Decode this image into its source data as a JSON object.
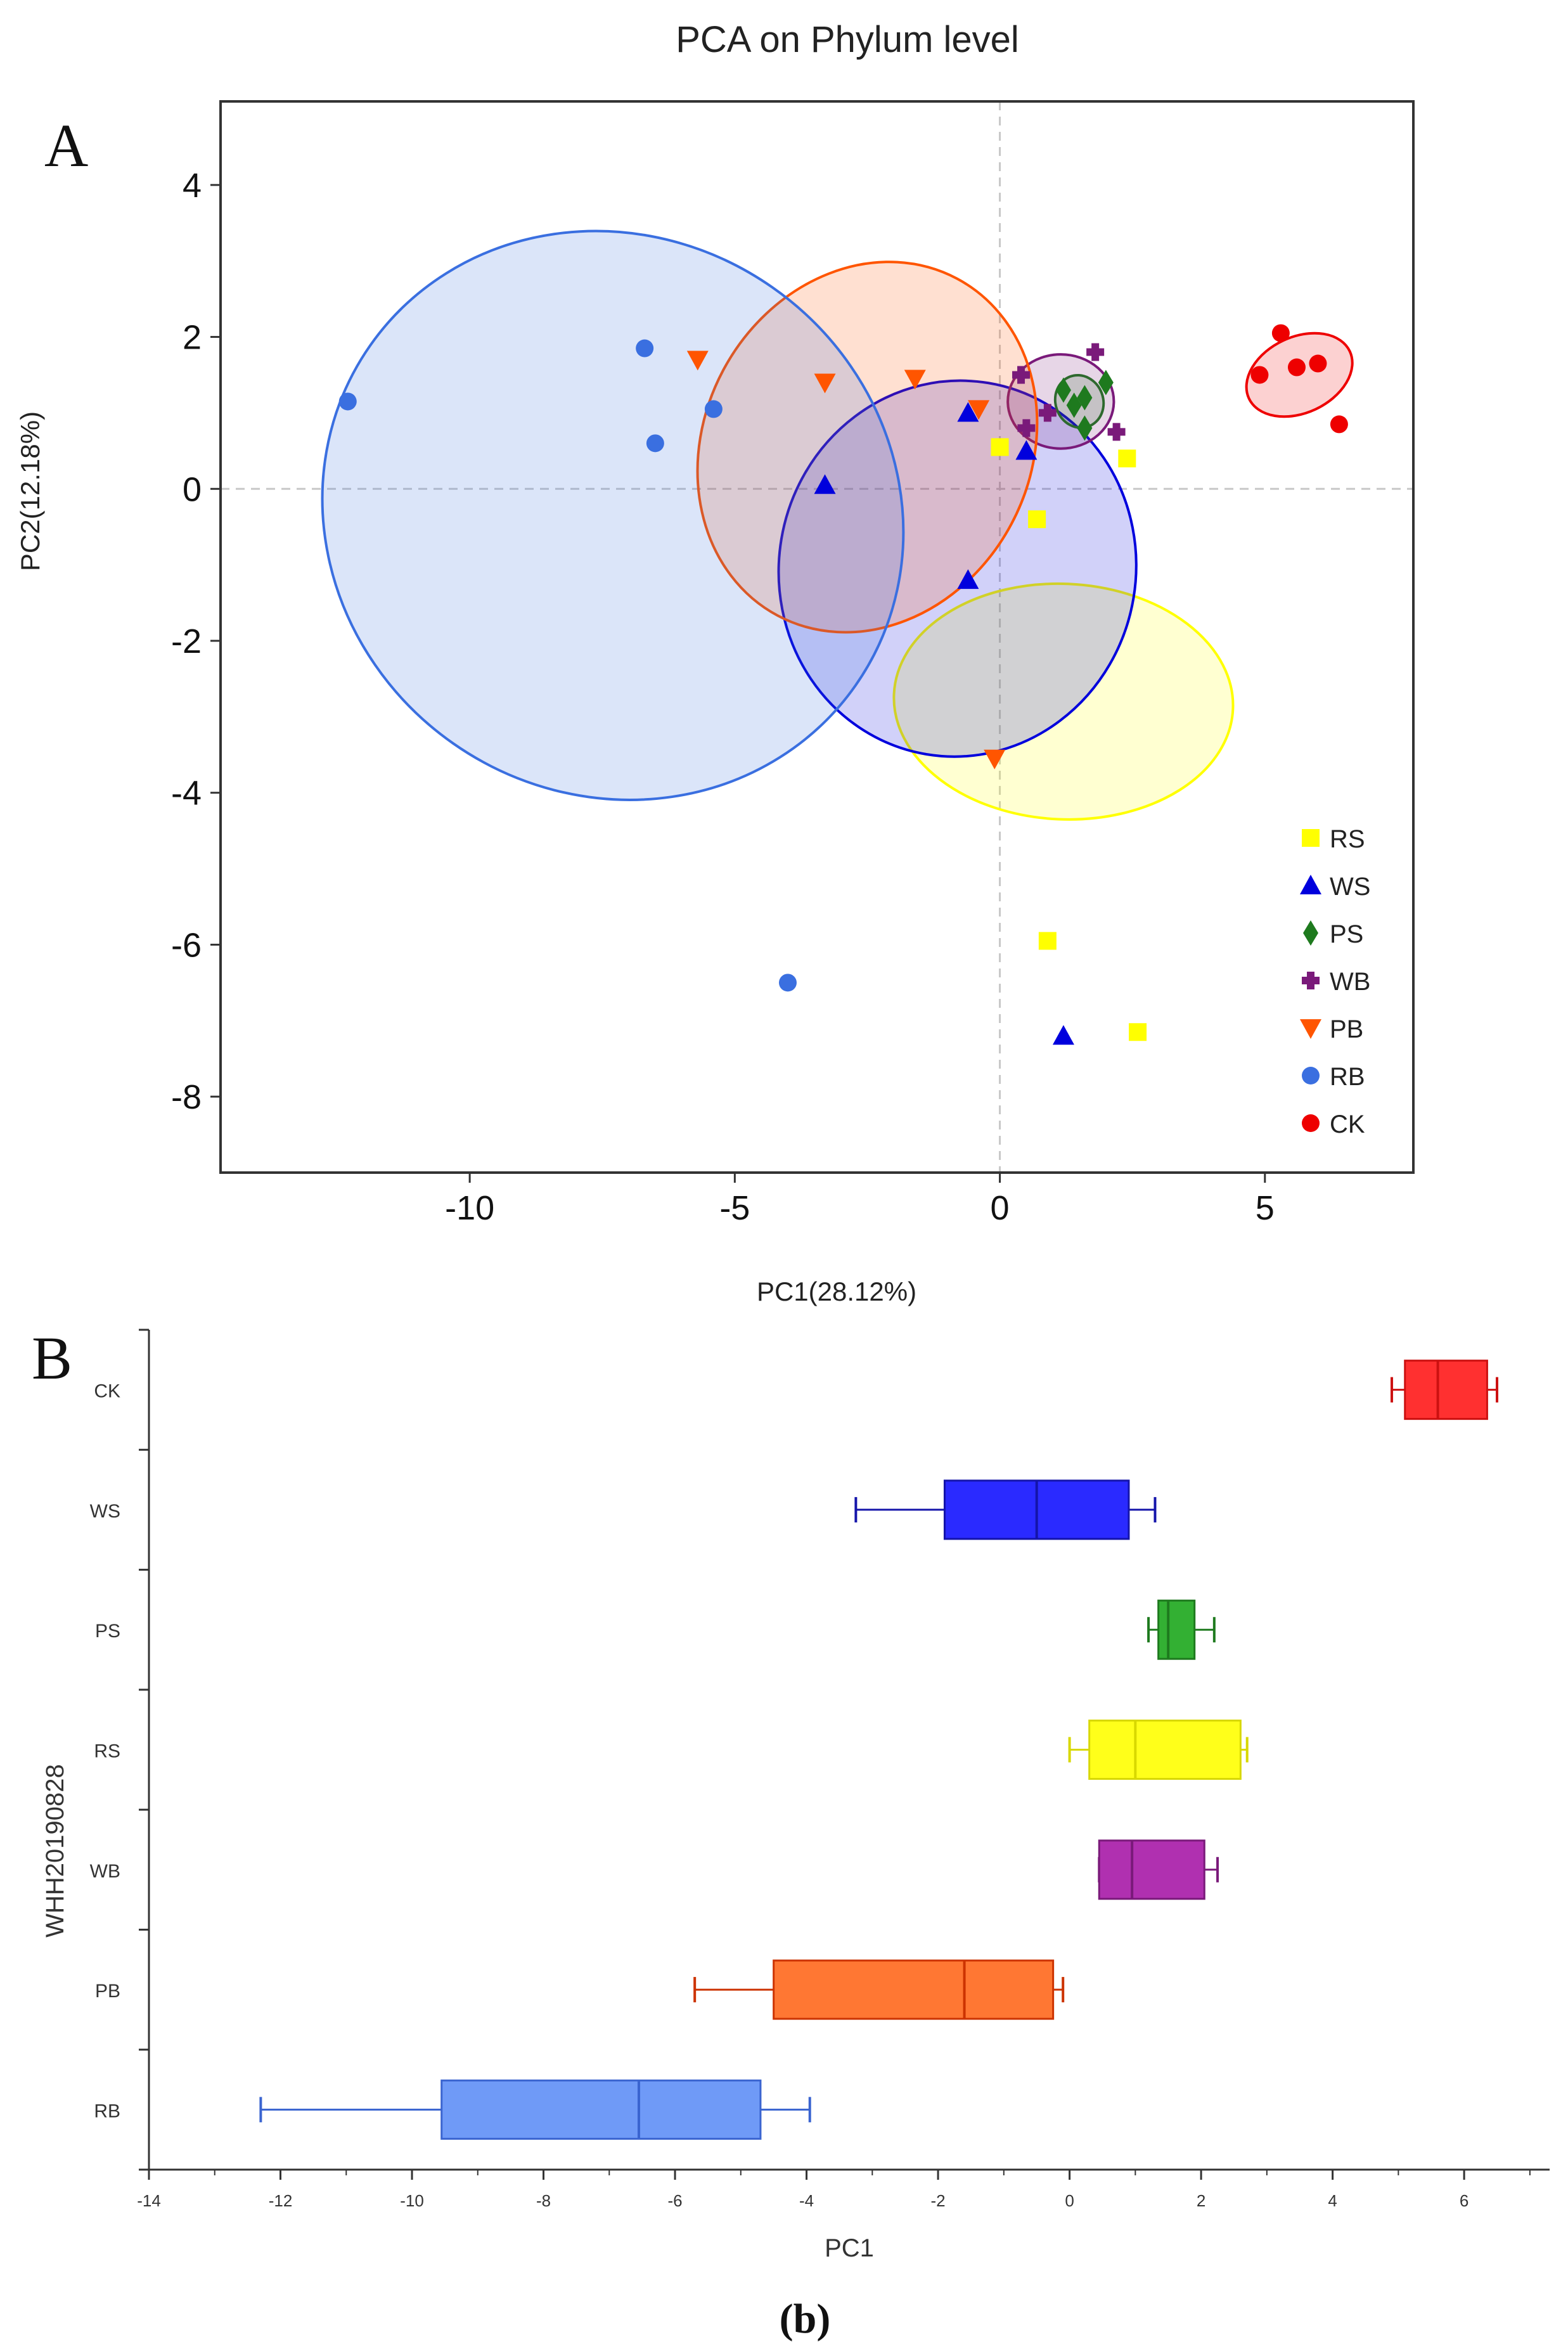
{
  "figure_caption": "(b)",
  "colors": {
    "RS": "#ffff00",
    "WS": "#0000dd",
    "PS": "#1e7a1e",
    "WB": "#7a1a7a",
    "PB": "#ff5500",
    "RB": "#3a6fe0",
    "CK": "#ee0000"
  },
  "chart_data": [
    {
      "type": "scatter",
      "panel_label": "A",
      "title": "PCA on Phylum level",
      "xlabel": "PC1(28.12%)",
      "ylabel": "PC2(12.18%)",
      "xlim": [
        -14.7,
        7.8
      ],
      "ylim": [
        -9,
        5.1
      ],
      "xticks": [
        "-10",
        "-5",
        "0",
        "5"
      ],
      "yticks": [
        "4",
        "2",
        "0",
        "-2",
        "-4",
        "-6",
        "-8"
      ],
      "legend_position": "bottom-right",
      "legend": [
        "RS",
        "WS",
        "PS",
        "WB",
        "PB",
        "RB",
        "CK"
      ],
      "series": [
        {
          "name": "RS",
          "marker": "square",
          "points": [
            [
              0,
              0.55
            ],
            [
              0.7,
              -0.4
            ],
            [
              2.4,
              0.4
            ],
            [
              0.9,
              -5.95
            ],
            [
              2.6,
              -7.15
            ]
          ],
          "ellipse": {
            "cx": 1.2,
            "cy": -2.8,
            "rx": 3.2,
            "ry": 1.55,
            "angle": -2.5
          }
        },
        {
          "name": "WS",
          "marker": "triangle",
          "points": [
            [
              -3.3,
              0.05
            ],
            [
              -0.6,
              1.0
            ],
            [
              0.5,
              0.5
            ],
            [
              -0.6,
              -1.2
            ],
            [
              1.2,
              -7.2
            ]
          ],
          "ellipse": {
            "cx": -0.8,
            "cy": -1.05,
            "rx": 3.55,
            "ry": 2.35,
            "angle": 80.5
          }
        },
        {
          "name": "PS",
          "marker": "diamond",
          "points": [
            [
              1.2,
              1.3
            ],
            [
              1.4,
              1.1
            ],
            [
              1.6,
              1.2
            ],
            [
              1.6,
              0.8
            ],
            [
              2.0,
              1.4
            ]
          ],
          "ellipse": {
            "cx": 1.5,
            "cy": 1.15,
            "rx": 0.45,
            "ry": 0.35,
            "angle": 20
          }
        },
        {
          "name": "WB",
          "marker": "plus",
          "points": [
            [
              0.4,
              1.5
            ],
            [
              1.8,
              1.8
            ],
            [
              0.9,
              1.0
            ],
            [
              0.5,
              0.8
            ],
            [
              2.2,
              0.75
            ]
          ],
          "ellipse": {
            "cx": 1.15,
            "cy": 1.15,
            "rx": 1.0,
            "ry": 0.62,
            "angle": 0
          }
        },
        {
          "name": "PB",
          "marker": "triangle-down",
          "points": [
            [
              -5.7,
              1.7
            ],
            [
              -3.3,
              1.4
            ],
            [
              -1.6,
              1.45
            ],
            [
              -0.4,
              1.05
            ],
            [
              -0.1,
              -3.55
            ]
          ],
          "ellipse": {
            "cx": -2.5,
            "cy": 0.55,
            "rx": 3.6,
            "ry": 2.15,
            "angle": 62
          }
        },
        {
          "name": "RB",
          "marker": "circle",
          "points": [
            [
              -12.3,
              1.15
            ],
            [
              -6.7,
              1.85
            ],
            [
              -6.5,
              0.6
            ],
            [
              -5.4,
              1.05
            ],
            [
              -4.0,
              -6.5
            ]
          ],
          "ellipse": {
            "cx": -7.3,
            "cy": -0.35,
            "rx": 5.25,
            "ry": 3.9,
            "angle": 55
          }
        },
        {
          "name": "CK",
          "marker": "circle",
          "points": [
            [
              4.9,
              1.5
            ],
            [
              5.3,
              2.05
            ],
            [
              5.6,
              1.6
            ],
            [
              6.0,
              1.65
            ],
            [
              6.4,
              0.85
            ]
          ],
          "ellipse": {
            "cx": 5.65,
            "cy": 1.5,
            "rx": 1.05,
            "ry": 0.5,
            "angle": 25
          }
        }
      ]
    },
    {
      "type": "box",
      "panel_label": "B",
      "xlabel": "PC1",
      "ylabel": "WHH20190828",
      "xlim": [
        -14,
        7.3
      ],
      "xticks": [
        "-14",
        "-12",
        "-10",
        "-8",
        "-6",
        "-4",
        "-2",
        "0",
        "2",
        "4",
        "6"
      ],
      "categories": [
        "CK",
        "WS",
        "PS",
        "RS",
        "WB",
        "PB",
        "RB"
      ],
      "boxes": [
        {
          "name": "CK",
          "min": 4.9,
          "q1": 5.1,
          "median": 5.6,
          "q3": 6.35,
          "max": 6.5
        },
        {
          "name": "WS",
          "min": -3.25,
          "q1": -1.9,
          "median": -0.5,
          "q3": 0.9,
          "max": 1.3
        },
        {
          "name": "PS",
          "min": 1.2,
          "q1": 1.35,
          "median": 1.5,
          "q3": 1.9,
          "max": 2.2
        },
        {
          "name": "RS",
          "min": 0,
          "q1": 0.3,
          "median": 1.0,
          "q3": 2.6,
          "max": 2.7
        },
        {
          "name": "WB",
          "min": 0.45,
          "q1": 0.45,
          "median": 0.95,
          "q3": 2.05,
          "max": 2.25
        },
        {
          "name": "PB",
          "min": -5.7,
          "q1": -4.5,
          "median": -1.6,
          "q3": -0.25,
          "max": -0.1
        },
        {
          "name": "RB",
          "min": -12.3,
          "q1": -9.55,
          "median": -6.55,
          "q3": -4.7,
          "max": -3.95
        }
      ],
      "box_colors": {
        "CK": "#ff3030",
        "WS": "#2a2aff",
        "PS": "#33b033",
        "RS": "#ffff1a",
        "WB": "#b030b0",
        "PB": "#ff7733",
        "RB": "#6f9af7"
      },
      "edge_colors": {
        "CK": "#cc1111",
        "WS": "#1414aa",
        "PS": "#1e7a1e",
        "RS": "#d8d800",
        "WB": "#7a1a7a",
        "PB": "#cc3300",
        "RB": "#3a64d0"
      }
    }
  ]
}
